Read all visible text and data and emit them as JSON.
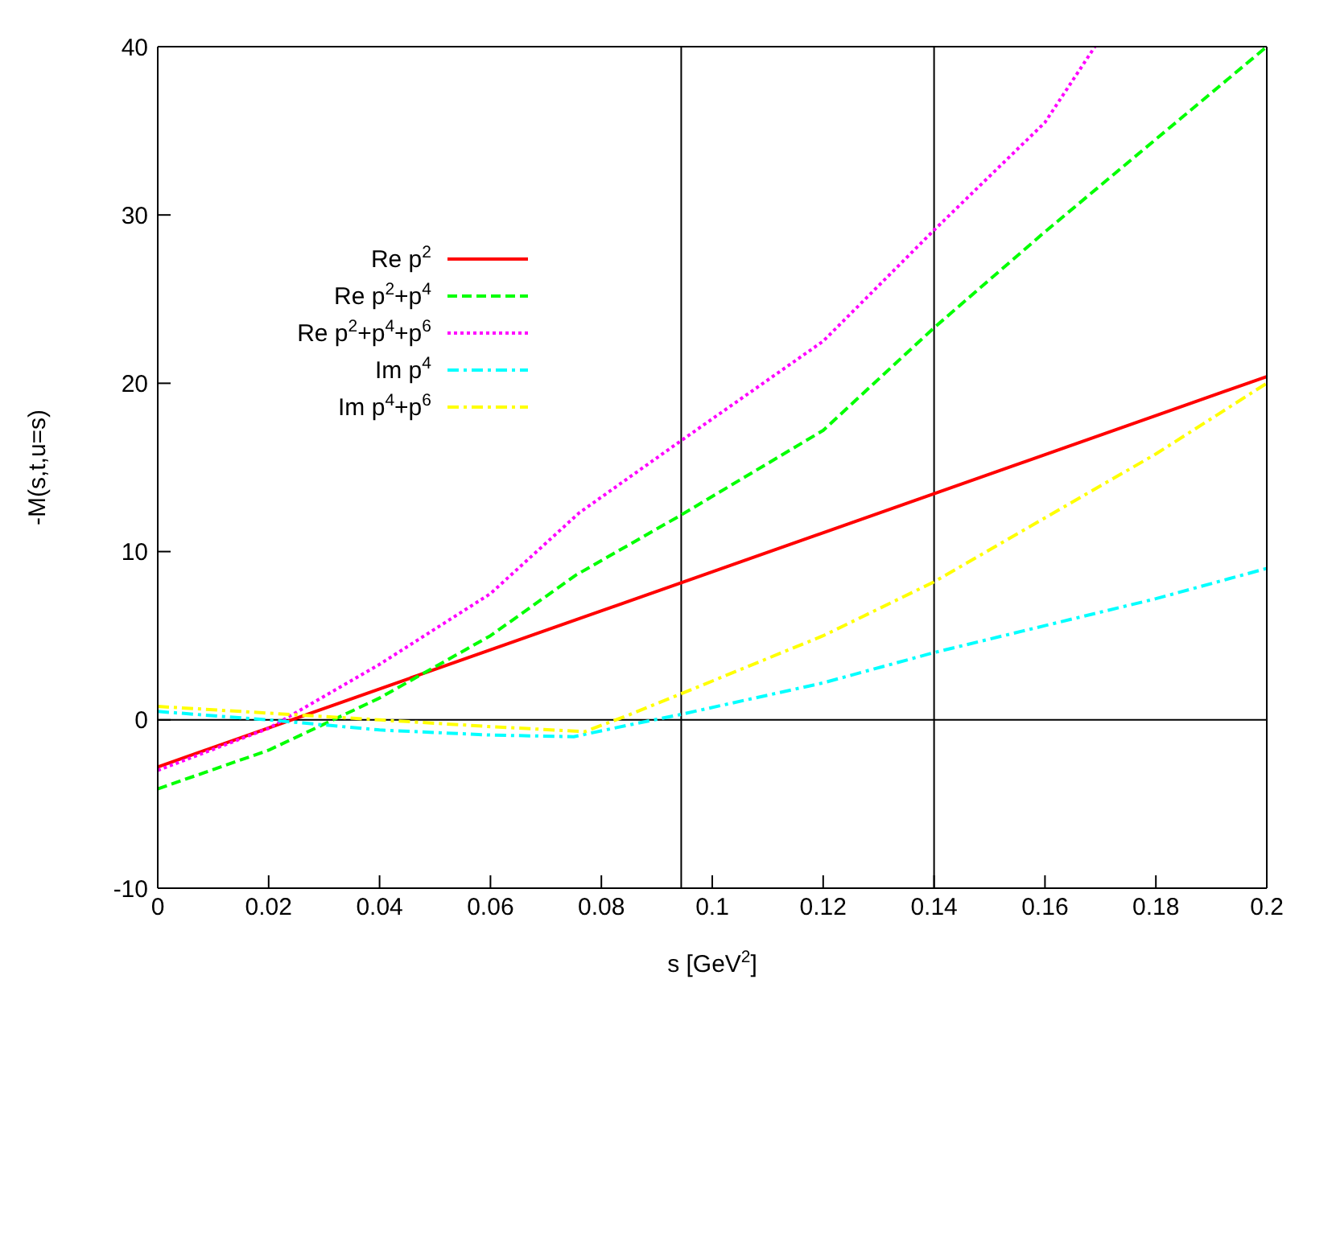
{
  "chart_data": {
    "type": "line",
    "xlabel": "s [GeV$^{2}$]",
    "ylabel": "-M(s,t,u=s)",
    "xlim": [
      0,
      0.2
    ],
    "ylim": [
      -10,
      40
    ],
    "xticks": [
      0,
      0.02,
      0.04,
      0.06,
      0.08,
      0.1,
      0.12,
      0.14,
      0.16,
      0.18,
      0.2
    ],
    "yticks": [
      -10,
      0,
      10,
      20,
      30,
      40
    ],
    "grid": false,
    "legend": "top left",
    "marker": "none",
    "ref_lines": [
      {
        "axis": "x",
        "value": 0.0944,
        "color": "#000000"
      },
      {
        "axis": "x",
        "value": 0.14,
        "color": "#000000"
      },
      {
        "axis": "y",
        "value": 0,
        "color": "#000000"
      }
    ],
    "series": [
      {
        "name": "Re p$^{2}$",
        "color": "#ff0000",
        "line_style": "solid",
        "x": [
          0,
          0.2
        ],
        "values": [
          -2.8,
          20.4
        ]
      },
      {
        "name": "Re p$^{2}$+p$^{4}$",
        "color": "#00ff00",
        "line_style": "dashed",
        "x": [
          0,
          0.02,
          0.04,
          0.06,
          0.0754,
          0.094,
          0.12,
          0.14,
          0.16,
          0.18,
          0.2
        ],
        "values": [
          -4.1,
          -1.8,
          1.3,
          5,
          8.6,
          12.1,
          17.2,
          23.3,
          29,
          34.5,
          40
        ]
      },
      {
        "name": "Re p$^{2}$+p$^{4}$+p$^{6}$",
        "color": "#ff00ff",
        "line_style": "dotted",
        "x": [
          0,
          0.02,
          0.04,
          0.06,
          0.076,
          0.094,
          0.12,
          0.14,
          0.16,
          0.169
        ],
        "values": [
          -3,
          -0.5,
          3.3,
          7.5,
          12.3,
          16.5,
          22.5,
          29.1,
          35.5,
          40
        ]
      },
      {
        "name": "Im p$^{4}$",
        "color": "#00ffff",
        "line_style": "dashed",
        "x": [
          0,
          0.02,
          0.03,
          0.04,
          0.06,
          0.075,
          0.085,
          0.094,
          0.12,
          0.14,
          0.16,
          0.18,
          0.2
        ],
        "values": [
          0.5,
          0,
          -0.3,
          -0.6,
          -0.9,
          -1,
          -0.3,
          0.3,
          2.2,
          4,
          5.6,
          7.2,
          9
        ]
      },
      {
        "name": "Im p$^{4}$+p$^{6}$",
        "color": "#ffff00",
        "line_style": "dashed",
        "x": [
          0,
          0.02,
          0.04,
          0.06,
          0.077,
          0.085,
          0.094,
          0.12,
          0.14,
          0.16,
          0.18,
          0.2
        ],
        "values": [
          0.8,
          0.4,
          0,
          -0.4,
          -0.7,
          0.3,
          1.5,
          5,
          8.2,
          12,
          15.8,
          20
        ]
      }
    ]
  }
}
